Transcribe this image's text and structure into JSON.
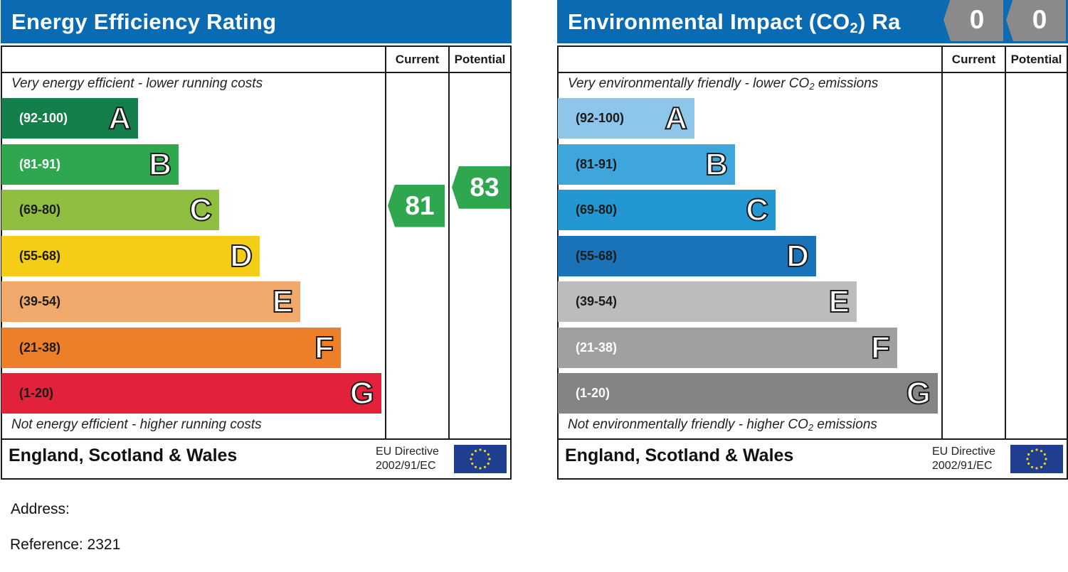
{
  "chart_data": [
    {
      "type": "bar",
      "title": "Energy Efficiency Rating",
      "column_headers": [
        "Current",
        "Potential"
      ],
      "top_note": "Very energy efficient - lower running costs",
      "bottom_note": "Not energy efficient - higher running costs",
      "bands": [
        {
          "range": "(92-100)",
          "letter": "A",
          "color": "#157f4b",
          "text_color": "#ffffff"
        },
        {
          "range": "(81-91)",
          "letter": "B",
          "color": "#2ea74f",
          "text_color": "#ffffff"
        },
        {
          "range": "(69-80)",
          "letter": "C",
          "color": "#8fbe40",
          "text_color": "#1a1a1a"
        },
        {
          "range": "(55-68)",
          "letter": "D",
          "color": "#f5cd17",
          "text_color": "#1a1a1a"
        },
        {
          "range": "(39-54)",
          "letter": "E",
          "color": "#f1a96b",
          "text_color": "#1a1a1a"
        },
        {
          "range": "(21-38)",
          "letter": "F",
          "color": "#ec7f28",
          "text_color": "#1a1a1a"
        },
        {
          "range": "(1-20)",
          "letter": "G",
          "color": "#e2213b",
          "text_color": "#1a1a1a"
        }
      ],
      "ratings": {
        "current": {
          "value": 81,
          "label": "81",
          "color": "#2ea74f"
        },
        "potential": {
          "value": 83,
          "label": "83",
          "color": "#2ea74f"
        }
      },
      "footer": {
        "country": "England, Scotland & Wales",
        "directive_line1": "EU Directive",
        "directive_line2": "2002/91/EC"
      }
    },
    {
      "type": "bar",
      "title_main": "Environmental Impact (CO",
      "title_sub": "2",
      "title_end": ") Ra",
      "column_headers": [
        "Current",
        "Potential"
      ],
      "top_note_main": "Very environmentally friendly - lower CO",
      "top_note_sub": "2",
      "top_note_end": " emissions",
      "bottom_note_main": "Not environmentally friendly - higher CO",
      "bottom_note_sub": "2",
      "bottom_note_end": " emissions",
      "bands": [
        {
          "range": "(92-100)",
          "letter": "A",
          "color": "#8dc6e9",
          "text_color": "#1a1a1a"
        },
        {
          "range": "(81-91)",
          "letter": "B",
          "color": "#3fa6dc",
          "text_color": "#1a1a1a"
        },
        {
          "range": "(69-80)",
          "letter": "C",
          "color": "#2297d2",
          "text_color": "#1a1a1a"
        },
        {
          "range": "(55-68)",
          "letter": "D",
          "color": "#1a73b9",
          "text_color": "#1a1a1a"
        },
        {
          "range": "(39-54)",
          "letter": "E",
          "color": "#bcbcbc",
          "text_color": "#1a1a1a"
        },
        {
          "range": "(21-38)",
          "letter": "F",
          "color": "#a0a0a0",
          "text_color": "#ffffff"
        },
        {
          "range": "(1-20)",
          "letter": "G",
          "color": "#848484",
          "text_color": "#ffffff"
        }
      ],
      "ratings": {
        "current": {
          "value": 0,
          "label": "0",
          "color": "#8a8a8a"
        },
        "potential": {
          "value": 0,
          "label": "0",
          "color": "#8a8a8a"
        }
      },
      "footer": {
        "country": "England, Scotland & Wales",
        "directive_line1": "EU Directive",
        "directive_line2": "2002/91/EC"
      }
    }
  ],
  "info": {
    "address_label": "Address:",
    "reference_label": "Reference: 2321"
  }
}
